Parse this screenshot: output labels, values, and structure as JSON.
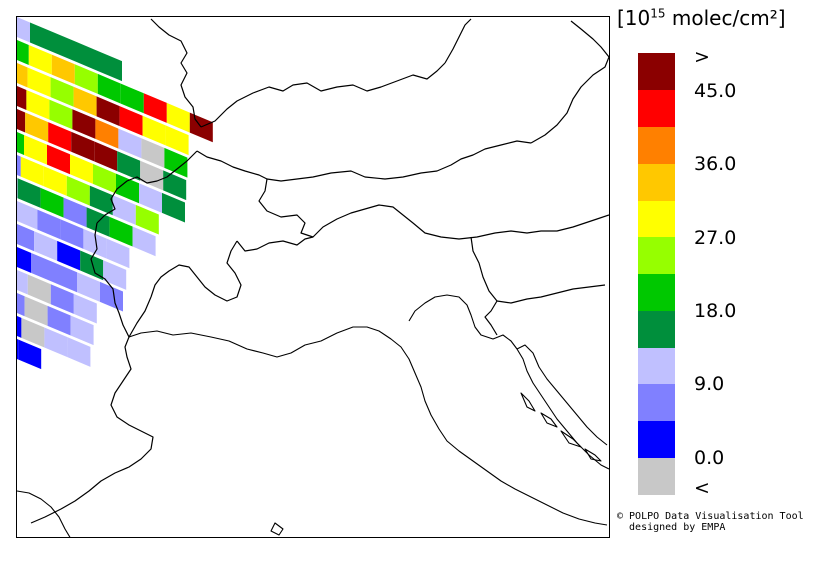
{
  "legend": {
    "unit_prefix": "[10",
    "unit_exp": "15",
    "unit_suffix": " molec/cm²]",
    "colors": [
      "#c8c8c8",
      "#0000ff",
      "#8080ff",
      "#c0c0ff",
      "#008f3c",
      "#00c800",
      "#96ff00",
      "#ffff00",
      "#ffc800",
      "#ff8000",
      "#ff0000",
      "#8b0000"
    ],
    "labels": [
      ">",
      "45.0",
      "36.0",
      "27.0",
      "18.0",
      "9.0",
      "0.0",
      "<"
    ]
  },
  "credit": {
    "line1": "© POLPO Data Visualisation Tool",
    "line2": "  designed by EMPA"
  },
  "swath": {
    "rows": [
      [
        "#c0c0ff",
        "#008f3c",
        "#008f3c",
        "#008f3c",
        "#008f3c"
      ],
      [
        "#00c800",
        "#ffff00",
        "#ffc800",
        "#96ff00",
        "#00c800",
        "#00c800",
        "#ff0000",
        "#ffff00",
        "#8b0000"
      ],
      [
        "#ffc800",
        "#ffff00",
        "#96ff00",
        "#ffc800",
        "#8b0000",
        "#ff0000",
        "#ffff00",
        "#ffff00"
      ],
      [
        "#8b0000",
        "#ffff00",
        "#96ff00",
        "#8b0000",
        "#ff8000",
        "#c0c0ff",
        "#c8c8c8",
        "#00c800"
      ],
      [
        "#8b0000",
        "#ffc800",
        "#ff0000",
        "#8b0000",
        "#8b0000",
        "#008f3c",
        "#c8c8c8",
        "#008f3c"
      ],
      [
        "#00c800",
        "#ffff00",
        "#ff0000",
        "#ffff00",
        "#96ff00",
        "#00c800",
        "#c0c0ff",
        "#008f3c"
      ],
      [
        "#8080ff",
        "#ffff00",
        "#ffff00",
        "#96ff00",
        "#008f3c",
        "#c0c0ff",
        "#96ff00"
      ],
      [
        "#c0c0ff",
        "#008f3c",
        "#00c800",
        "#8080ff",
        "#008f3c",
        "#00c800",
        "#c0c0ff"
      ],
      [
        "#0000ff",
        "#c0c0ff",
        "#8080ff",
        "#8080ff",
        "#c0c0ff",
        "#c0c0ff"
      ],
      [
        "#c8c8c8",
        "#8080ff",
        "#c0c0ff",
        "#0000ff",
        "#008f3c",
        "#c0c0ff"
      ],
      [
        "#0000ff",
        "#0000ff",
        "#8080ff",
        "#8080ff",
        "#c0c0ff",
        "#8080ff"
      ],
      [
        "#0000ff",
        "#c0c0ff",
        "#c8c8c8",
        "#8080ff",
        "#c0c0ff"
      ],
      [
        "#0000ff",
        "#8080ff",
        "#c8c8c8",
        "#8080ff",
        "#c0c0ff"
      ],
      [
        "#0000ff",
        "#0000ff",
        "#c8c8c8",
        "#c0c0ff",
        "#c0c0ff"
      ],
      [
        "#8080ff",
        "#0000ff",
        "#0000ff"
      ]
    ]
  }
}
